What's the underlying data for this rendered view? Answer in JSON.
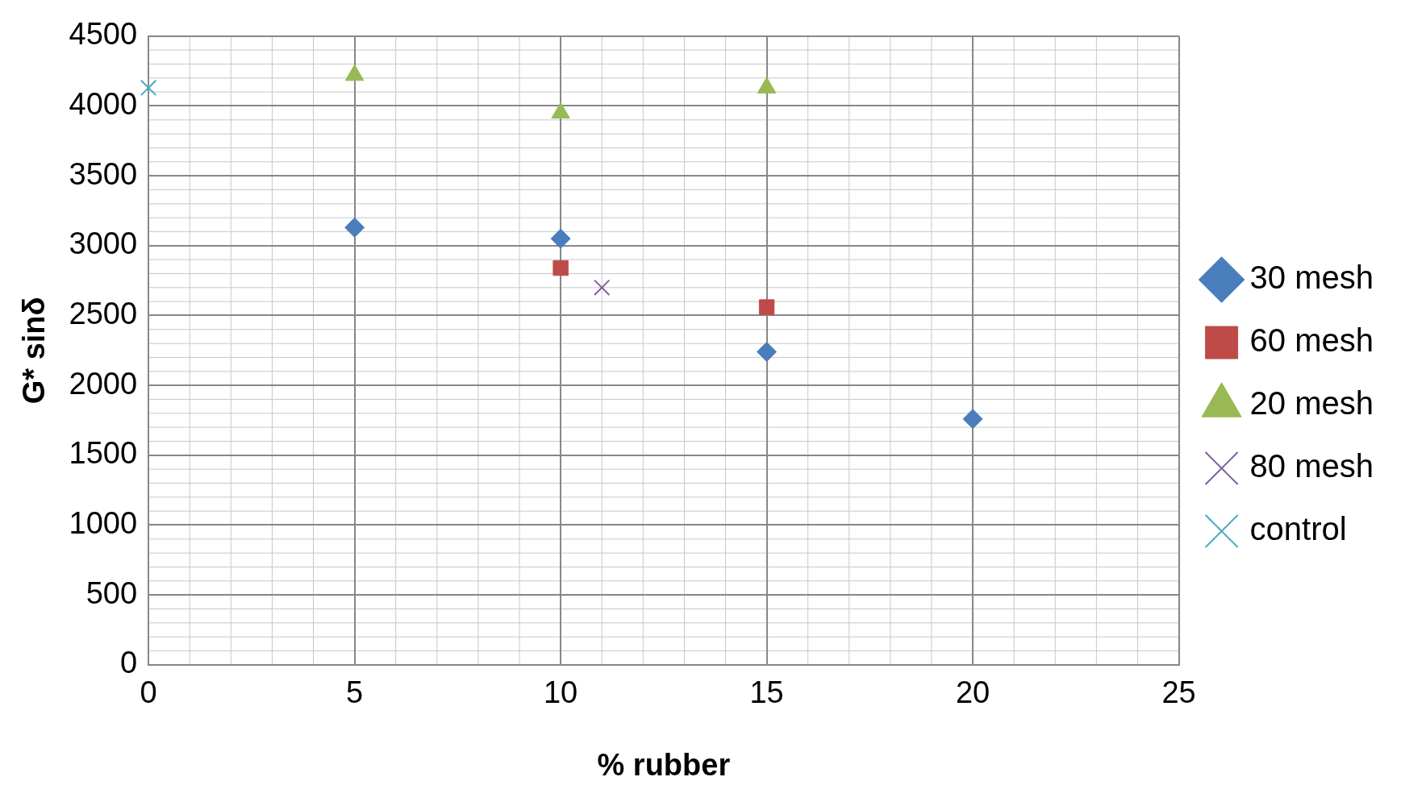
{
  "chart_data": {
    "type": "scatter",
    "xlabel": "% rubber",
    "ylabel": "G* sinδ",
    "xlim": [
      0,
      25
    ],
    "xticks": [
      0,
      5,
      10,
      15,
      20,
      25
    ],
    "ylim": [
      0,
      4500
    ],
    "yticks": [
      0,
      500,
      1000,
      1500,
      2000,
      2500,
      3000,
      3500,
      4000,
      4500
    ],
    "grid": true,
    "legend": "right",
    "series": [
      {
        "name": "30 mesh",
        "color": "#4a7ebb",
        "marker": "diamond",
        "x": [
          5,
          10,
          15,
          20
        ],
        "values": [
          3130,
          3050,
          2240,
          1760
        ]
      },
      {
        "name": "60 mesh",
        "color": "#be4b48",
        "marker": "square",
        "x": [
          10,
          15
        ],
        "values": [
          2840,
          2560
        ]
      },
      {
        "name": "20 mesh",
        "color": "#98b954",
        "marker": "triangle",
        "x": [
          5,
          10,
          15
        ],
        "values": [
          4220,
          3950,
          4130
        ]
      },
      {
        "name": "80 mesh",
        "color": "#7d60a0",
        "marker": "cross",
        "x": [
          11
        ],
        "values": [
          2700
        ]
      },
      {
        "name": "control",
        "color": "#46aac5",
        "marker": "cross",
        "x": [
          0
        ],
        "values": [
          4130
        ]
      }
    ]
  }
}
